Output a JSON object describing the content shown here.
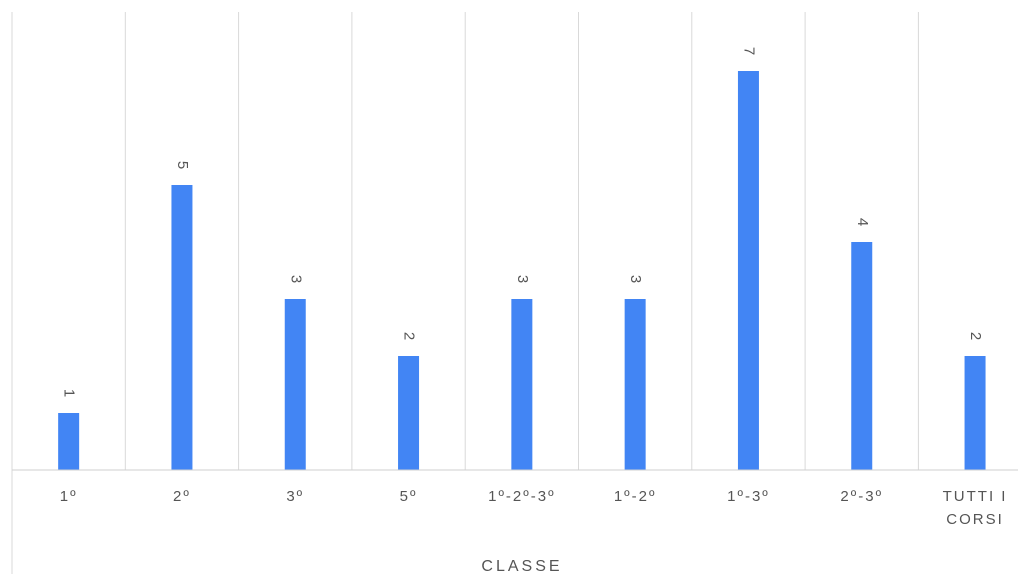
{
  "chart_data": {
    "type": "bar",
    "title": "",
    "xlabel": "CLASSE",
    "ylabel": "",
    "categories": [
      "1º",
      "2º",
      "3º",
      "5º",
      "1º-2º-3º",
      "1º-2º",
      "1º-3º",
      "2º-3º",
      "TUTTI I CORSI"
    ],
    "category_lines": [
      [
        "1º"
      ],
      [
        "2º"
      ],
      [
        "3º"
      ],
      [
        "5º"
      ],
      [
        "1º-2º-3º"
      ],
      [
        "1º-2º"
      ],
      [
        "1º-3º"
      ],
      [
        "2º-3º"
      ],
      [
        "TUTTI I",
        "CORSI"
      ]
    ],
    "values": [
      1,
      5,
      3,
      2,
      3,
      3,
      7,
      4,
      2
    ],
    "ylim": [
      0,
      8
    ],
    "grid": "vertical",
    "legend": "none",
    "data_labels": true,
    "bar_color": "#4285f4"
  }
}
